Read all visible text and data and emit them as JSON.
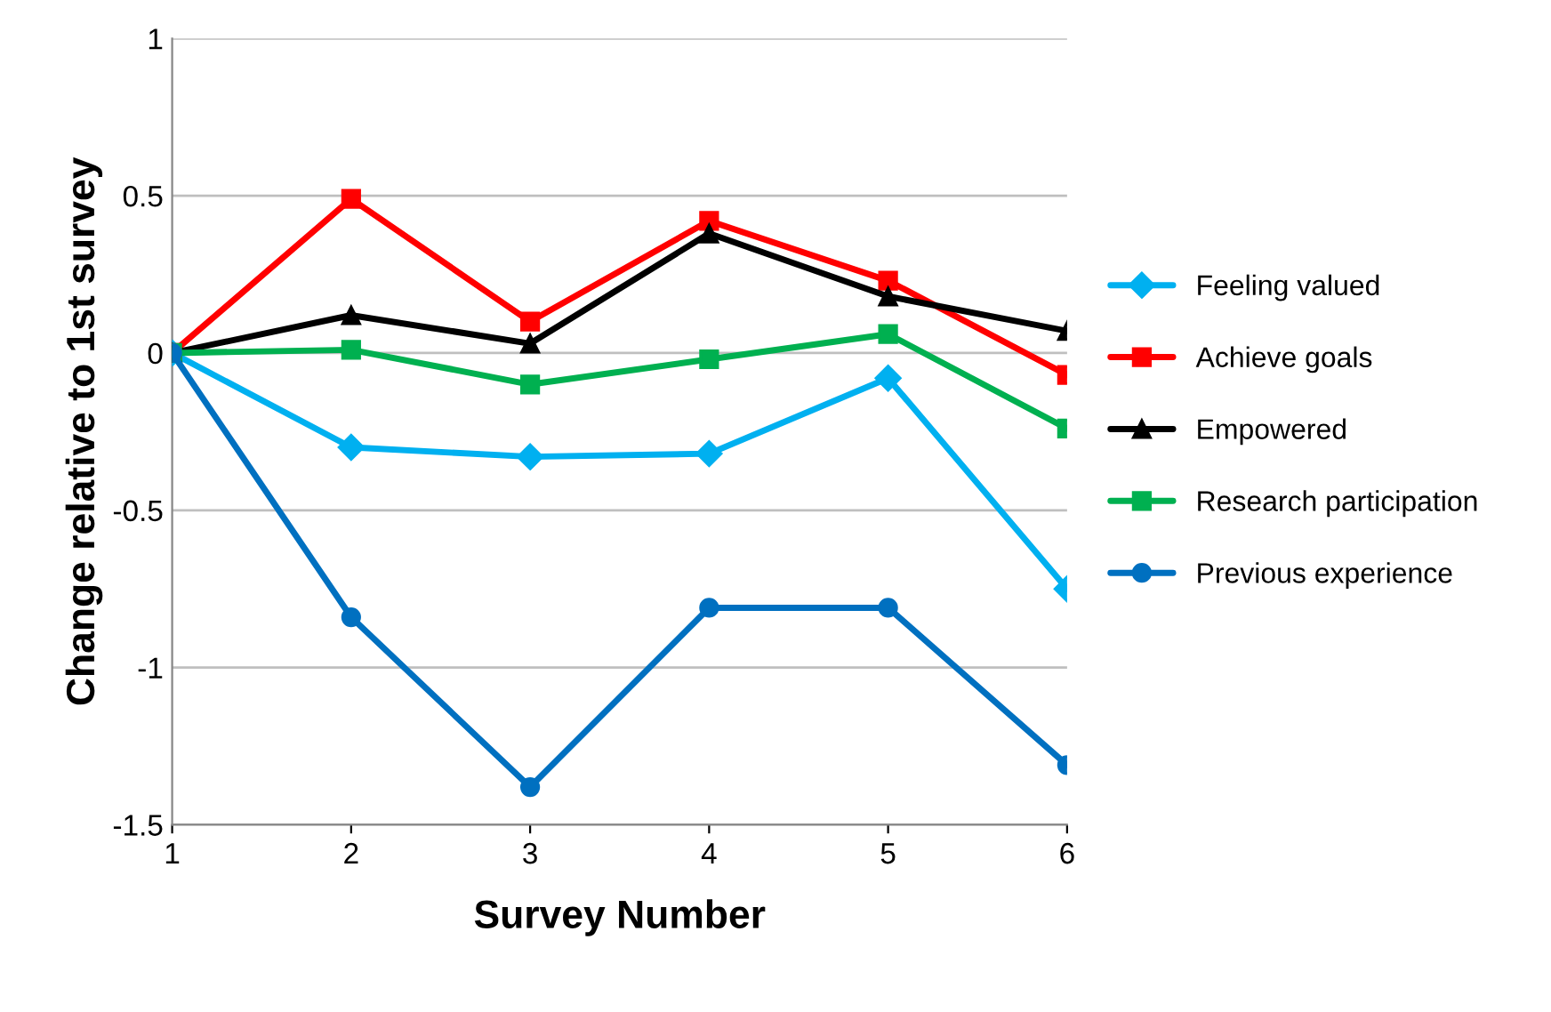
{
  "chart_data": {
    "type": "line",
    "xlabel": "Survey Number",
    "ylabel": "Change relative to 1st survey",
    "x": [
      1,
      2,
      3,
      4,
      5,
      6
    ],
    "series": [
      {
        "name": "Feeling valued",
        "color": "#00b0f0",
        "marker": "diamond",
        "values": [
          0,
          -0.3,
          -0.33,
          -0.32,
          -0.08,
          -0.75
        ]
      },
      {
        "name": "Achieve goals",
        "color": "#ff0000",
        "marker": "square",
        "values": [
          0,
          0.49,
          0.1,
          0.42,
          0.23,
          -0.07
        ]
      },
      {
        "name": "Empowered",
        "color": "#000000",
        "marker": "triangle",
        "values": [
          0,
          0.12,
          0.03,
          0.38,
          0.18,
          0.07
        ]
      },
      {
        "name": "Research participation",
        "color": "#00b050",
        "marker": "square",
        "values": [
          0,
          0.01,
          -0.1,
          -0.02,
          0.06,
          -0.24
        ]
      },
      {
        "name": "Previous experience",
        "color": "#0070c0",
        "marker": "circle",
        "values": [
          0,
          -0.84,
          -1.38,
          -0.81,
          -0.81,
          -1.31
        ]
      }
    ],
    "xlim": [
      1,
      6
    ],
    "xticks": [
      1,
      2,
      3,
      4,
      5,
      6
    ],
    "ylim": [
      -1.5,
      1
    ],
    "yticks": [
      -1.5,
      -1,
      -0.5,
      0,
      0.5,
      1
    ],
    "grid": "y",
    "legend": "right",
    "line_style": "solid"
  }
}
